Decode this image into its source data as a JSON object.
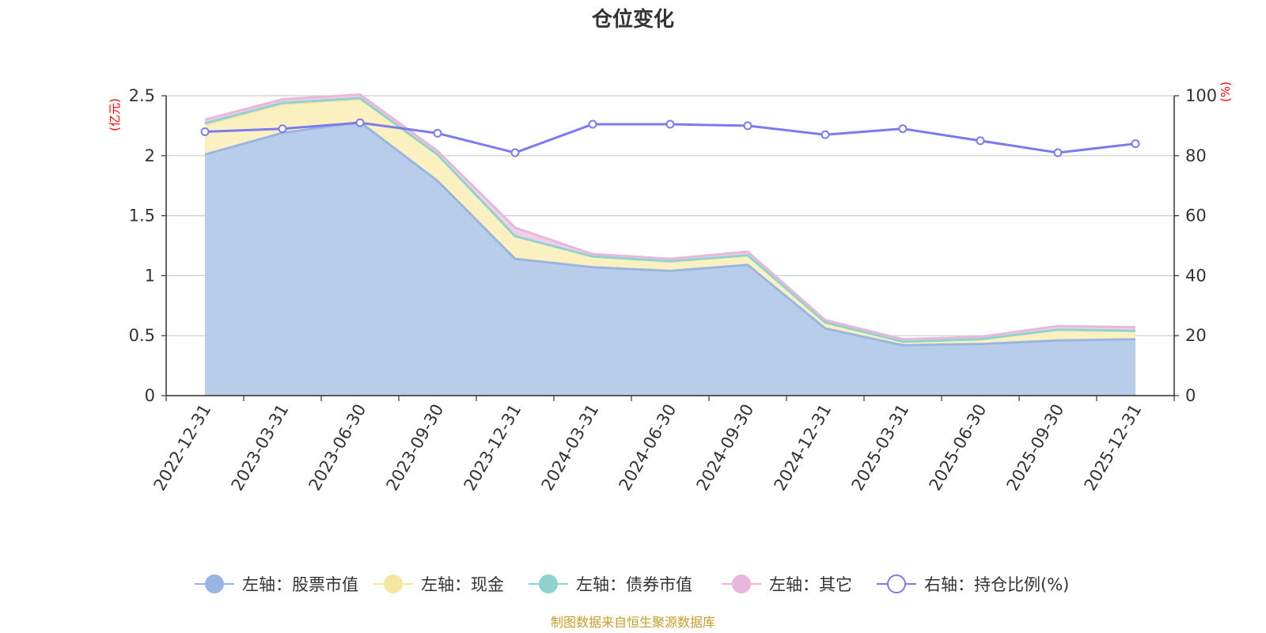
{
  "chart_data": {
    "type": "area",
    "title": "仓位变化",
    "categories": [
      "2022-12-31",
      "2023-03-31",
      "2023-06-30",
      "2023-09-30",
      "2023-12-31",
      "2024-03-31",
      "2024-06-30",
      "2024-09-30",
      "2024-12-31",
      "2025-03-31",
      "2025-06-30",
      "2025-09-30",
      "2025-12-31"
    ],
    "left_axis": {
      "unit": "(亿元)",
      "ylim": [
        0,
        2.5
      ],
      "ticks": [
        "0",
        "0.5",
        "1",
        "1.5",
        "2",
        "2.5"
      ]
    },
    "right_axis": {
      "unit": "(%)",
      "ylim": [
        0,
        100
      ],
      "ticks": [
        "0",
        "20",
        "40",
        "60",
        "80",
        "100"
      ]
    },
    "series": [
      {
        "name": "左轴：股票市值",
        "axis": "left",
        "stacked": true,
        "color": "#9ab6e0",
        "fill": "#b8cdea",
        "values": [
          2.01,
          2.19,
          2.28,
          1.79,
          1.14,
          1.07,
          1.04,
          1.09,
          0.56,
          0.42,
          0.43,
          0.46,
          0.47
        ]
      },
      {
        "name": "左轴：现金",
        "axis": "left",
        "stacked": true,
        "color": "#f5e6a0",
        "fill": "#faf0c0",
        "values": [
          0.25,
          0.24,
          0.19,
          0.22,
          0.19,
          0.09,
          0.08,
          0.08,
          0.05,
          0.03,
          0.04,
          0.09,
          0.07
        ]
      },
      {
        "name": "左轴：债券市值",
        "axis": "left",
        "stacked": true,
        "color": "#8fd3d0",
        "fill": "#bfe6e4",
        "values": [
          0.01,
          0.01,
          0.01,
          0,
          0,
          0,
          0,
          0,
          0,
          0,
          0,
          0,
          0
        ]
      },
      {
        "name": "左轴：其它",
        "axis": "left",
        "stacked": true,
        "color": "#e8b8dc",
        "fill": "#f0d0e8",
        "values": [
          0.03,
          0.03,
          0.03,
          0.03,
          0.07,
          0.02,
          0.02,
          0.03,
          0.02,
          0.02,
          0.02,
          0.03,
          0.03
        ]
      },
      {
        "name": "右轴：持仓比例(%)",
        "axis": "right",
        "type": "line",
        "color": "#7b7bef",
        "values": [
          88,
          89,
          91,
          87.5,
          81,
          90.5,
          90.5,
          90,
          87,
          89,
          85,
          81,
          84
        ]
      }
    ],
    "source": "制图数据来自恒生聚源数据库"
  }
}
